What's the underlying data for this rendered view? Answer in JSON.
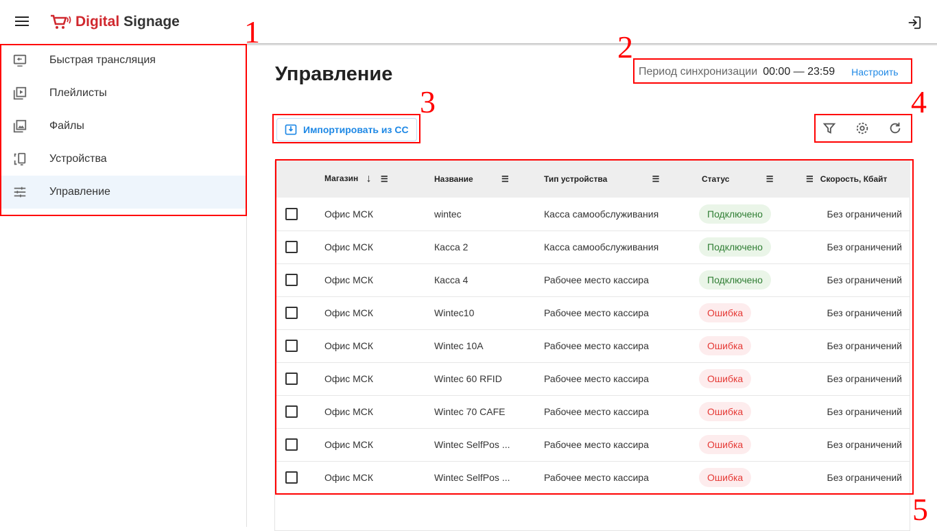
{
  "app": {
    "brand_red": "Digital",
    "brand_dark": "Signage",
    "brand_color": "#d0282e",
    "accent": "#1e88e5"
  },
  "sidebar": {
    "items": [
      {
        "label": "Быстрая трансляция",
        "icon": "screen-share-icon"
      },
      {
        "label": "Плейлисты",
        "icon": "playlist-icon"
      },
      {
        "label": "Файлы",
        "icon": "images-icon"
      },
      {
        "label": "Устройства",
        "icon": "devices-icon"
      },
      {
        "label": "Управление",
        "icon": "sliders-icon",
        "active": true
      }
    ]
  },
  "page": {
    "title": "Управление"
  },
  "sync": {
    "label": "Период синхронизации",
    "time": "00:00 — 23:59",
    "action": "Настроить"
  },
  "toolbar": {
    "import_label": "Импортировать из СС"
  },
  "table": {
    "columns": [
      "Магазин",
      "Название",
      "Тип устройства",
      "Статус",
      "Скорость, Кбайт"
    ],
    "rows": [
      {
        "shop": "Офис МСК",
        "name": "wintec",
        "type": "Касса самообслуживания",
        "status": "Подключено",
        "ok": true,
        "speed": "Без ограничений"
      },
      {
        "shop": "Офис МСК",
        "name": "Касса 2",
        "type": "Касса самообслуживания",
        "status": "Подключено",
        "ok": true,
        "speed": "Без ограничений"
      },
      {
        "shop": "Офис МСК",
        "name": "Касса 4",
        "type": "Рабочее место кассира",
        "status": "Подключено",
        "ok": true,
        "speed": "Без ограничений"
      },
      {
        "shop": "Офис МСК",
        "name": "Wintec10",
        "type": "Рабочее место кассира",
        "status": "Ошибка",
        "ok": false,
        "speed": "Без ограничений"
      },
      {
        "shop": "Офис МСК",
        "name": "Wintec 10A",
        "type": "Рабочее место кассира",
        "status": "Ошибка",
        "ok": false,
        "speed": "Без ограничений"
      },
      {
        "shop": "Офис МСК",
        "name": "Wintec 60 RFID",
        "type": "Рабочее место кассира",
        "status": "Ошибка",
        "ok": false,
        "speed": "Без ограничений"
      },
      {
        "shop": "Офис МСК",
        "name": "Wintec 70 CAFE",
        "type": "Рабочее место кассира",
        "status": "Ошибка",
        "ok": false,
        "speed": "Без ограничений"
      },
      {
        "shop": "Офис МСК",
        "name": "Wintec SelfPos ...",
        "type": "Рабочее место кассира",
        "status": "Ошибка",
        "ok": false,
        "speed": "Без ограничений"
      },
      {
        "shop": "Офис МСК",
        "name": "Wintec SelfPos ...",
        "type": "Рабочее место кассира",
        "status": "Ошибка",
        "ok": false,
        "speed": "Без ограничений"
      }
    ]
  },
  "annotations": [
    "1",
    "2",
    "3",
    "4",
    "5"
  ]
}
